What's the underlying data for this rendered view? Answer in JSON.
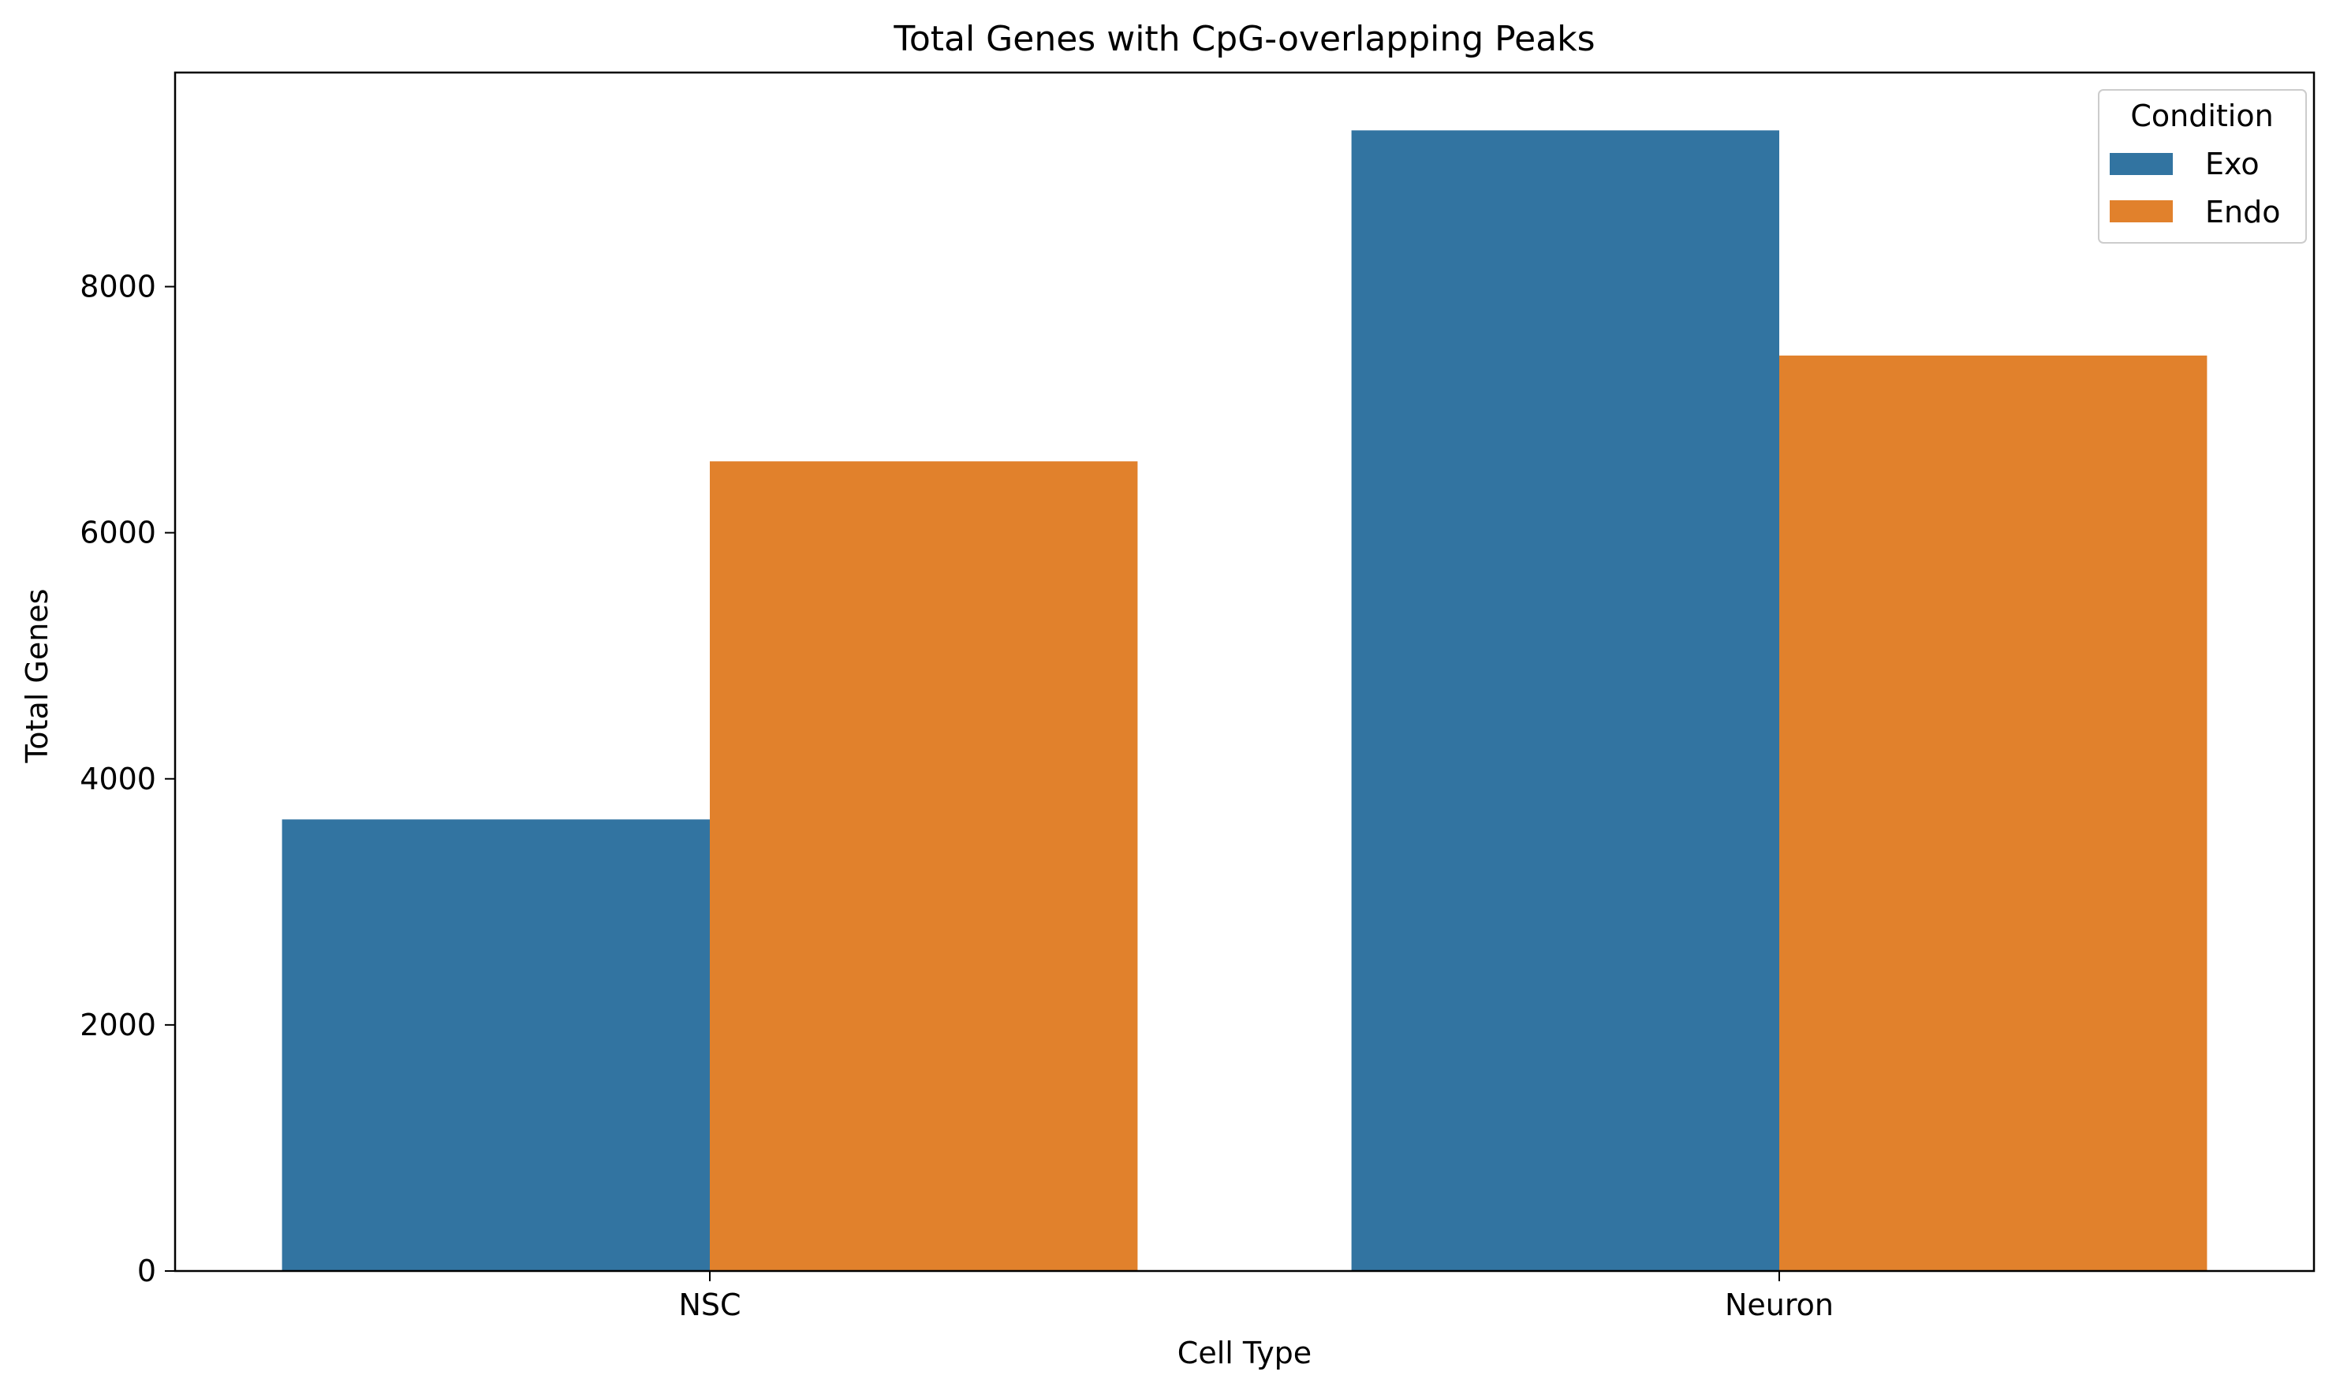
{
  "chart_data": {
    "type": "bar",
    "title": "Total Genes with CpG-overlapping Peaks",
    "xlabel": "Cell Type",
    "ylabel": "Total Genes",
    "categories": [
      "NSC",
      "Neuron"
    ],
    "series": [
      {
        "name": "Exo",
        "values": [
          3670,
          9270
        ],
        "color": "#3274a1"
      },
      {
        "name": "Endo",
        "values": [
          6580,
          7440
        ],
        "color": "#e1812c"
      }
    ],
    "ylim": [
      0,
      9740
    ],
    "yticks": [
      0,
      2000,
      4000,
      6000,
      8000
    ],
    "ytick_labels": [
      "0",
      "2000",
      "4000",
      "6000",
      "8000"
    ],
    "grid": false,
    "legend": {
      "title": "Condition",
      "placement": "top-right"
    }
  }
}
